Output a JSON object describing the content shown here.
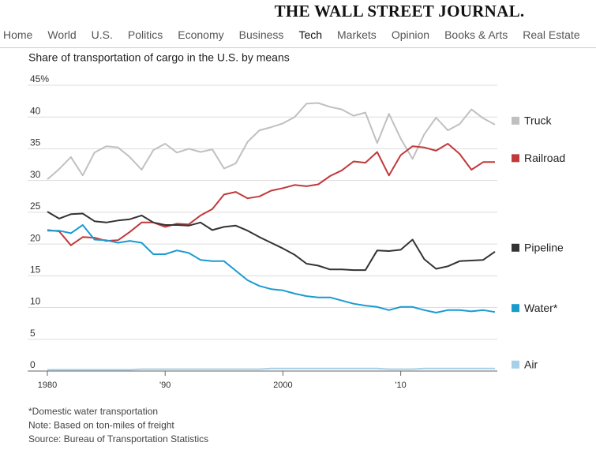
{
  "header": {
    "masthead": "THE WALL STREET JOURNAL.",
    "nav": [
      "Home",
      "World",
      "U.S.",
      "Politics",
      "Economy",
      "Business",
      "Tech",
      "Markets",
      "Opinion",
      "Books & Arts",
      "Real Estate"
    ],
    "active": "Tech"
  },
  "chart_data": {
    "type": "line",
    "title": "Share of transportation of cargo in the U.S. by means",
    "x": [
      1980,
      1981,
      1982,
      1983,
      1984,
      1985,
      1986,
      1987,
      1988,
      1989,
      1990,
      1991,
      1992,
      1993,
      1994,
      1995,
      1996,
      1997,
      1998,
      1999,
      2000,
      2001,
      2002,
      2003,
      2004,
      2005,
      2006,
      2007,
      2008,
      2009,
      2010,
      2011,
      2012,
      2013,
      2014,
      2015,
      2016,
      2017,
      2018
    ],
    "xlim": [
      1980,
      2018
    ],
    "xticks": [
      1980,
      {
        "value": 1990,
        "label": "'90"
      },
      2000,
      {
        "value": 2010,
        "label": "'10"
      }
    ],
    "ylim": [
      0,
      45
    ],
    "yticks": [
      0,
      5,
      10,
      15,
      20,
      25,
      30,
      35,
      40,
      {
        "value": 45,
        "label": "45%"
      }
    ],
    "grid": true,
    "series": [
      {
        "name": "Truck",
        "color": "#c0c0c0",
        "values": [
          30.2,
          31.8,
          33.7,
          30.8,
          34.4,
          35.4,
          35.2,
          33.7,
          31.7,
          34.8,
          35.8,
          34.4,
          35.0,
          34.5,
          34.9,
          31.9,
          32.7,
          36.1,
          37.9,
          38.4,
          39.0,
          40.0,
          42.1,
          42.2,
          41.6,
          41.2,
          40.2,
          40.7,
          35.9,
          40.5,
          36.6,
          33.4,
          37.3,
          39.9,
          37.9,
          38.9,
          41.2,
          39.8,
          38.8
        ]
      },
      {
        "name": "Railroad",
        "color": "#c0393b",
        "values": [
          22.2,
          22.0,
          19.8,
          21.1,
          21.0,
          20.5,
          20.6,
          21.9,
          23.4,
          23.4,
          22.7,
          23.2,
          23.1,
          24.5,
          25.5,
          27.8,
          28.2,
          27.2,
          27.5,
          28.4,
          28.8,
          29.3,
          29.1,
          29.4,
          30.7,
          31.6,
          33.0,
          32.8,
          34.5,
          30.8,
          34.0,
          35.4,
          35.2,
          34.7,
          35.8,
          34.2,
          31.7,
          32.9,
          32.9
        ]
      },
      {
        "name": "Pipeline",
        "color": "#333333",
        "values": [
          25.1,
          24.0,
          24.7,
          24.8,
          23.6,
          23.4,
          23.7,
          23.9,
          24.5,
          23.4,
          23.0,
          23.0,
          22.9,
          23.4,
          22.2,
          22.7,
          22.9,
          22.1,
          21.1,
          20.2,
          19.3,
          18.3,
          16.9,
          16.6,
          16.0,
          16.0,
          15.9,
          15.9,
          19.0,
          18.9,
          19.1,
          20.7,
          17.6,
          16.1,
          16.5,
          17.3,
          17.4,
          17.5,
          18.8
        ]
      },
      {
        "name": "Water*",
        "color": "#1a9bd0",
        "values": [
          22.1,
          22.1,
          21.7,
          23.0,
          20.7,
          20.6,
          20.2,
          20.5,
          20.2,
          18.4,
          18.4,
          19.0,
          18.6,
          17.5,
          17.3,
          17.3,
          15.8,
          14.3,
          13.4,
          12.9,
          12.7,
          12.2,
          11.8,
          11.6,
          11.6,
          11.1,
          10.6,
          10.3,
          10.1,
          9.6,
          10.1,
          10.1,
          9.6,
          9.2,
          9.6,
          9.6,
          9.4,
          9.6,
          9.3
        ]
      },
      {
        "name": "Air",
        "color": "#a8cfe8",
        "values": [
          0.2,
          0.2,
          0.2,
          0.2,
          0.2,
          0.2,
          0.2,
          0.2,
          0.3,
          0.3,
          0.3,
          0.3,
          0.3,
          0.3,
          0.3,
          0.3,
          0.3,
          0.3,
          0.3,
          0.4,
          0.4,
          0.4,
          0.4,
          0.4,
          0.4,
          0.4,
          0.4,
          0.4,
          0.4,
          0.3,
          0.3,
          0.3,
          0.4,
          0.4,
          0.4,
          0.4,
          0.4,
          0.4,
          0.4
        ]
      }
    ]
  },
  "notes": [
    "*Domestic water transportation",
    "Note: Based on ton-miles of freight",
    "Source: Bureau of Transportation Statistics"
  ]
}
